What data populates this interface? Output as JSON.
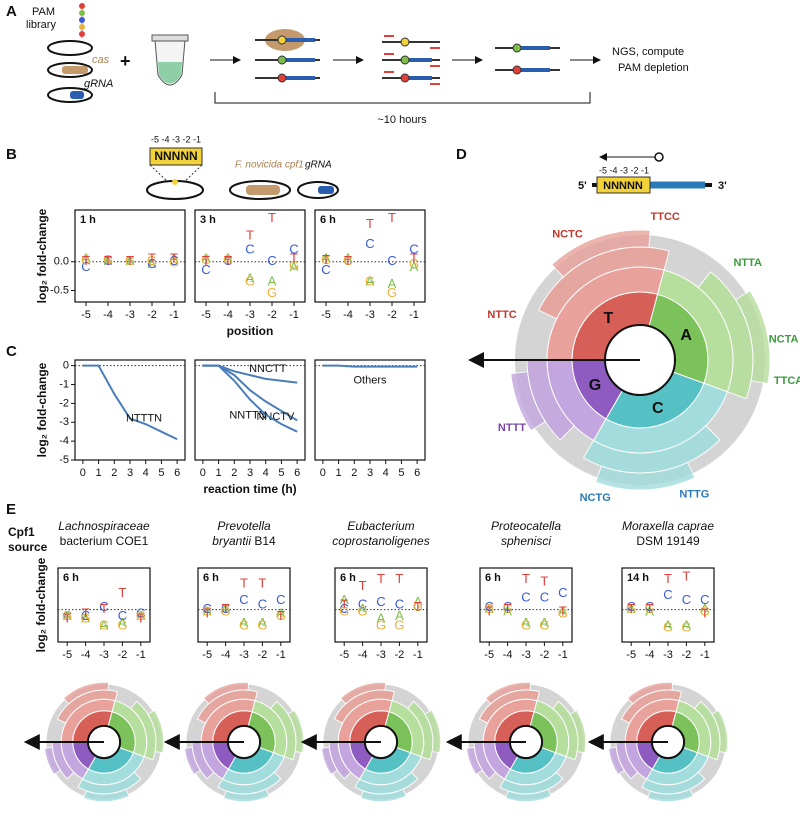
{
  "panel_a": {
    "label": "A",
    "library": [
      "PAM",
      "library"
    ],
    "cas": "cas",
    "grna": "gRNA",
    "output": [
      "NGS, compute",
      "PAM depletion"
    ],
    "duration": "~10 hours"
  },
  "panel_b": {
    "label": "B",
    "positions": "-5 -4 -3 -2 -1",
    "pam": "NNNNN",
    "cas": "F. novicida cpf1",
    "grna": "gRNA"
  },
  "panel_c": {
    "label": "C"
  },
  "panel_d": {
    "label": "D",
    "positions": "-5 -4 -3 -2 -1",
    "pam": "NNNNN",
    "five": "5'",
    "three": "3'",
    "inner_letters": [
      "T",
      "A",
      "C",
      "G"
    ],
    "groups": [
      {
        "text": "NTTC",
        "color": "#c0392b"
      },
      {
        "text": "NCTC",
        "color": "#c0392b"
      },
      {
        "text": "TTCC",
        "color": "#c0392b"
      },
      {
        "text": "NTTA",
        "color": "#3d9a3d"
      },
      {
        "text": "NCTA",
        "color": "#3d9a3d"
      },
      {
        "text": "TTCA",
        "color": "#3d9a3d"
      },
      {
        "text": "NTTG",
        "color": "#2a7ab8"
      },
      {
        "text": "NCTG",
        "color": "#2a7ab8"
      },
      {
        "text": "NTTT",
        "color": "#7b45a8"
      }
    ]
  },
  "panel_e": {
    "label": "E",
    "heading": [
      "Cpf1",
      "source"
    ],
    "sources": [
      [
        [
          {
            "text": "Lachnospiraceae",
            "italic": true
          }
        ],
        [
          {
            "text": "bacterium COE1",
            "italic": false
          }
        ]
      ],
      [
        [
          {
            "text": "Prevotella",
            "italic": true
          }
        ],
        [
          {
            "text": "bryantii ",
            "italic": true
          },
          {
            "text": "B14",
            "italic": false
          }
        ]
      ],
      [
        [
          {
            "text": "Eubacterium",
            "italic": true
          }
        ],
        [
          {
            "text": "coprostanoligenes",
            "italic": true
          }
        ]
      ],
      [
        [
          {
            "text": "Proteocatella",
            "italic": true
          }
        ],
        [
          {
            "text": "sphenisci",
            "italic": true
          }
        ]
      ],
      [
        [
          {
            "text": "Moraxella caprae",
            "italic": true
          }
        ],
        [
          {
            "text": "DSM 19149",
            "italic": false
          }
        ]
      ]
    ]
  },
  "chart_data": [
    {
      "type": "scatter",
      "title": "1 h",
      "ylabel": "log₂ fold-change",
      "x": [
        -5,
        -4,
        -3,
        -2,
        -1
      ],
      "xlim": [
        -5.5,
        -0.5
      ],
      "xticks": [
        -5,
        -4,
        -3,
        -2,
        -1
      ],
      "ylim": [
        -0.7,
        0.9
      ],
      "yticks": [
        {
          "value": 0,
          "label": "0.0"
        },
        -0.5
      ],
      "series": [
        {
          "name": "A",
          "color": "#7dbe4a",
          "values": [
            0.05,
            0,
            0,
            -0.05,
            0.05
          ]
        },
        {
          "name": "C",
          "color": "#3b5bd6",
          "values": [
            -0.1,
            0,
            0,
            -0.05,
            0
          ]
        },
        {
          "name": "G",
          "color": "#e8b23a",
          "values": [
            0.02,
            0.02,
            0,
            0,
            -0.02
          ]
        },
        {
          "name": "T",
          "color": "#e0403a",
          "values": [
            0,
            0,
            0,
            0.05,
            0.05
          ]
        }
      ]
    },
    {
      "type": "scatter",
      "title": "3 h",
      "xlabel": "position",
      "x": [
        -5,
        -4,
        -3,
        -2,
        -1
      ],
      "xlim": [
        -5.5,
        -0.5
      ],
      "xticks": [
        -5,
        -4,
        -3,
        -2,
        -1
      ],
      "ylim": [
        -0.7,
        0.9
      ],
      "series": [
        {
          "name": "A",
          "color": "#7dbe4a",
          "values": [
            0.05,
            0.05,
            -0.3,
            -0.35,
            -0.1
          ]
        },
        {
          "name": "C",
          "color": "#3b5bd6",
          "values": [
            -0.15,
            0,
            0.2,
            0,
            0.2
          ]
        },
        {
          "name": "G",
          "color": "#e8b23a",
          "values": [
            0.02,
            0.02,
            -0.35,
            -0.55,
            -0.08
          ]
        },
        {
          "name": "T",
          "color": "#e0403a",
          "values": [
            0,
            0,
            0.45,
            0.75,
            0.05
          ]
        }
      ]
    },
    {
      "type": "scatter",
      "title": "6 h",
      "x": [
        -5,
        -4,
        -3,
        -2,
        -1
      ],
      "xlim": [
        -5.5,
        -0.5
      ],
      "xticks": [
        -5,
        -4,
        -3,
        -2,
        -1
      ],
      "ylim": [
        -0.7,
        0.9
      ],
      "series": [
        {
          "name": "A",
          "color": "#7dbe4a",
          "values": [
            0.05,
            0.05,
            -0.35,
            -0.4,
            -0.1
          ]
        },
        {
          "name": "C",
          "color": "#3b5bd6",
          "values": [
            -0.15,
            0,
            0.3,
            0,
            0.2
          ]
        },
        {
          "name": "G",
          "color": "#e8b23a",
          "values": [
            0.02,
            0,
            -0.35,
            -0.55,
            -0.05
          ]
        },
        {
          "name": "T",
          "color": "#e0403a",
          "values": [
            0.02,
            0,
            0.65,
            0.75,
            0.05
          ]
        }
      ]
    },
    {
      "type": "line",
      "ylabel": "log₂ fold-change",
      "x": [
        0,
        1,
        2,
        3,
        4,
        5,
        6
      ],
      "xlim": [
        -0.5,
        6.5
      ],
      "xticks": [
        0,
        1,
        2,
        3,
        4,
        5,
        6
      ],
      "ylim": [
        -5,
        0.3
      ],
      "yticks": [
        0,
        -1,
        -2,
        -3,
        -4,
        -5
      ],
      "series": [
        {
          "name": "NTTTN",
          "color": "#4a7ebb",
          "values": [
            0,
            0,
            -1.5,
            -2.8,
            -3.1,
            -3.5,
            -3.9
          ]
        }
      ]
    },
    {
      "type": "line",
      "xlabel": "reaction time (h)",
      "x": [
        0,
        1,
        2,
        3,
        4,
        5,
        6
      ],
      "xlim": [
        -0.5,
        6.5
      ],
      "xticks": [
        0,
        1,
        2,
        3,
        4,
        5,
        6
      ],
      "ylim": [
        -5,
        0.3
      ],
      "series": [
        {
          "name": "NNCTT",
          "color": "#4a7ebb",
          "values": [
            0,
            0,
            -0.3,
            -0.5,
            -0.7,
            -0.8,
            -0.9
          ]
        },
        {
          "name": "NNCTV",
          "color": "#4a7ebb",
          "values": [
            0,
            0,
            -0.5,
            -1.3,
            -1.9,
            -2.4,
            -2.9
          ]
        },
        {
          "name": "NNTTN",
          "color": "#4a7ebb",
          "values": [
            0,
            0,
            -0.8,
            -1.8,
            -2.6,
            -3.1,
            -3.5
          ]
        }
      ]
    },
    {
      "type": "line",
      "x": [
        0,
        1,
        2,
        3,
        4,
        5,
        6
      ],
      "xlim": [
        -0.5,
        6.5
      ],
      "xticks": [
        0,
        1,
        2,
        3,
        4,
        5,
        6
      ],
      "ylim": [
        -5,
        0.3
      ],
      "series": [
        {
          "name": "Others",
          "color": "#4a7ebb",
          "values": [
            0,
            0,
            -0.05,
            -0.05,
            -0.05,
            -0.05,
            -0.05
          ]
        }
      ]
    },
    {
      "type": "scatter",
      "title": "6 h",
      "ylabel": "log₂ fold-change",
      "x": [
        -5,
        -4,
        -3,
        -2,
        -1
      ],
      "xlim": [
        -5.5,
        -0.5
      ],
      "xticks": [
        -5,
        -4,
        -3,
        -2,
        -1
      ],
      "ylim": [
        -0.7,
        0.9
      ],
      "series": [
        {
          "name": "A",
          "color": "#7dbe4a",
          "values": [
            -0.15,
            -0.2,
            -0.35,
            -0.3,
            -0.15
          ]
        },
        {
          "name": "C",
          "color": "#3b5bd6",
          "values": [
            -0.15,
            -0.15,
            0.05,
            -0.15,
            -0.1
          ]
        },
        {
          "name": "G",
          "color": "#e8b23a",
          "values": [
            -0.15,
            -0.2,
            -0.35,
            -0.35,
            -0.15
          ]
        },
        {
          "name": "T",
          "color": "#e0403a",
          "values": [
            -0.2,
            -0.1,
            0,
            0.35,
            -0.2
          ]
        }
      ]
    },
    {
      "type": "scatter",
      "title": "6 h",
      "x": [
        -5,
        -4,
        -3,
        -2,
        -1
      ],
      "xlim": [
        -5.5,
        -0.5
      ],
      "xticks": [
        -5,
        -4,
        -3,
        -2,
        -1
      ],
      "ylim": [
        -0.7,
        0.9
      ],
      "series": [
        {
          "name": "A",
          "color": "#7dbe4a",
          "values": [
            -0.05,
            0,
            -0.3,
            -0.3,
            -0.1
          ]
        },
        {
          "name": "C",
          "color": "#3b5bd6",
          "values": [
            0,
            0,
            0.2,
            0.1,
            0.2
          ]
        },
        {
          "name": "G",
          "color": "#e8b23a",
          "values": [
            -0.05,
            -0.05,
            -0.35,
            -0.35,
            -0.15
          ]
        },
        {
          "name": "T",
          "color": "#e0403a",
          "values": [
            -0.1,
            0,
            0.55,
            0.55,
            -0.15
          ]
        }
      ]
    },
    {
      "type": "scatter",
      "title": "6 h",
      "x": [
        -5,
        -4,
        -3,
        -2,
        -1
      ],
      "xlim": [
        -5.5,
        -0.5
      ],
      "xticks": [
        -5,
        -4,
        -3,
        -2,
        -1
      ],
      "ylim": [
        -0.7,
        0.9
      ],
      "series": [
        {
          "name": "A",
          "color": "#7dbe4a",
          "values": [
            0.2,
            0,
            -0.2,
            -0.15,
            0.15
          ]
        },
        {
          "name": "C",
          "color": "#3b5bd6",
          "values": [
            0,
            0.1,
            0.15,
            0.1,
            0.05
          ]
        },
        {
          "name": "G",
          "color": "#e8b23a",
          "values": [
            -0.05,
            -0.05,
            -0.35,
            -0.35,
            0.05
          ]
        },
        {
          "name": "T",
          "color": "#e0403a",
          "values": [
            0.1,
            0.5,
            0.65,
            0.65,
            0.05
          ]
        }
      ]
    },
    {
      "type": "scatter",
      "title": "6 h",
      "x": [
        -5,
        -4,
        -3,
        -2,
        -1
      ],
      "xlim": [
        -5.5,
        -0.5
      ],
      "xticks": [
        -5,
        -4,
        -3,
        -2,
        -1
      ],
      "ylim": [
        -0.7,
        0.9
      ],
      "series": [
        {
          "name": "A",
          "color": "#7dbe4a",
          "values": [
            0,
            -0.05,
            -0.3,
            -0.3,
            -0.05
          ]
        },
        {
          "name": "C",
          "color": "#3b5bd6",
          "values": [
            0.05,
            0.05,
            0.25,
            0.25,
            0.35
          ]
        },
        {
          "name": "G",
          "color": "#e8b23a",
          "values": [
            0,
            0,
            -0.35,
            -0.35,
            -0.1
          ]
        },
        {
          "name": "T",
          "color": "#e0403a",
          "values": [
            -0.05,
            0,
            0.65,
            0.6,
            -0.05
          ]
        }
      ]
    },
    {
      "type": "scatter",
      "title": "14 h",
      "x": [
        -5,
        -4,
        -3,
        -2,
        -1
      ],
      "xlim": [
        -5.5,
        -0.5
      ],
      "xticks": [
        -5,
        -4,
        -3,
        -2,
        -1
      ],
      "ylim": [
        -0.7,
        0.9
      ],
      "series": [
        {
          "name": "A",
          "color": "#7dbe4a",
          "values": [
            0,
            -0.05,
            -0.35,
            -0.35,
            0
          ]
        },
        {
          "name": "C",
          "color": "#3b5bd6",
          "values": [
            0.05,
            0.05,
            0.3,
            0.2,
            0.2
          ]
        },
        {
          "name": "G",
          "color": "#e8b23a",
          "values": [
            0,
            0,
            -0.4,
            -0.4,
            -0.05
          ]
        },
        {
          "name": "T",
          "color": "#e0403a",
          "values": [
            0,
            0,
            0.65,
            0.7,
            -0.1
          ]
        }
      ]
    }
  ]
}
